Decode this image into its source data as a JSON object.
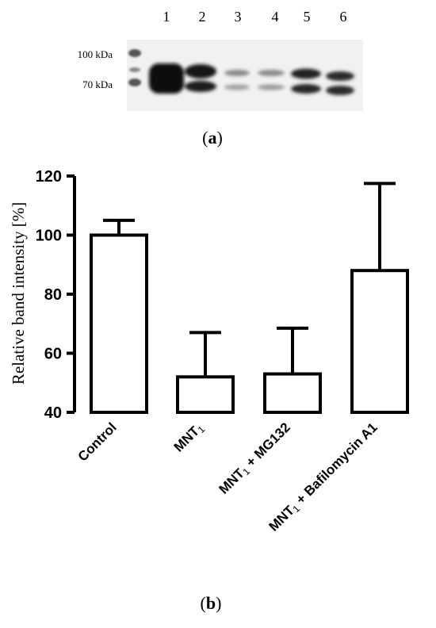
{
  "panel_a": {
    "lane_numbers": [
      "1",
      "2",
      "3",
      "4",
      "5",
      "6"
    ],
    "markers": [
      "100 kDa",
      "70 kDa"
    ],
    "caption": "(a)",
    "caption_letter": "a"
  },
  "panel_b": {
    "caption": "(b)",
    "caption_letter": "b"
  },
  "chart_data": {
    "type": "bar",
    "categories": [
      "Control",
      "MNT1",
      "MNT1 + MG132",
      "MNT1 + Bafilomycin A1"
    ],
    "category_labels": [
      {
        "pre": "Control",
        "sub": "",
        "post": ""
      },
      {
        "pre": "MNT",
        "sub": "1",
        "post": ""
      },
      {
        "pre": "MNT",
        "sub": "1",
        "post": " + MG132"
      },
      {
        "pre": "MNT",
        "sub": "1",
        "post": " + Bafilomycin A1"
      }
    ],
    "values": [
      100,
      52,
      53,
      88
    ],
    "error_upper": [
      5,
      15,
      15.5,
      29.5
    ],
    "ylabel": "Relative band intensity [%]",
    "ylim": [
      40,
      120
    ],
    "yticks": [
      40,
      60,
      80,
      100,
      120
    ],
    "grid": false,
    "colors": {
      "bar_fill": "#ffffff",
      "stroke": "#000000"
    }
  }
}
